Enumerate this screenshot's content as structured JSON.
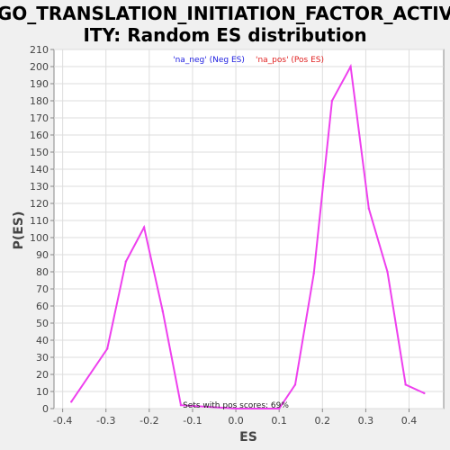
{
  "chart_data": {
    "type": "line",
    "title_line1": "GO_TRANSLATION_INITIATION_FACTOR_ACTIV",
    "title_line2": "ITY: Random ES distribution",
    "xlabel": "ES",
    "ylabel": "P(ES)",
    "xlim": [
      -0.42,
      0.48
    ],
    "ylim": [
      0,
      210
    ],
    "xticks": [
      -0.4,
      -0.3,
      -0.2,
      -0.1,
      0.0,
      0.1,
      0.2,
      0.3,
      0.4
    ],
    "xtick_labels": [
      "-0.4",
      "-0.3",
      "-0.2",
      "-0.1",
      "0.0",
      "0.1",
      "0.2",
      "0.3",
      "0.4"
    ],
    "yticks": [
      0,
      10,
      20,
      30,
      40,
      50,
      60,
      70,
      80,
      90,
      100,
      110,
      120,
      130,
      140,
      150,
      160,
      170,
      180,
      190,
      200,
      210
    ],
    "grid": true,
    "legend": {
      "placement": "top-center",
      "entries": [
        {
          "label": "'na_neg' (Neg ES)",
          "color": "#2020e0"
        },
        {
          "label": "'na_pos' (Pos ES)",
          "color": "#e02020"
        }
      ]
    },
    "annotation": "Sets with pos scores: 69%",
    "series": [
      {
        "color": "#ee40ee",
        "x": [
          -0.38,
          -0.297,
          -0.254,
          -0.212,
          -0.169,
          -0.127,
          0.0,
          0.1,
          0.137,
          0.18,
          0.222,
          0.265,
          0.307,
          0.35,
          0.392,
          0.435
        ],
        "y": [
          4,
          35,
          86,
          106,
          57,
          2,
          0,
          0,
          14,
          79,
          180,
          200,
          117,
          80,
          14,
          9
        ]
      }
    ]
  }
}
